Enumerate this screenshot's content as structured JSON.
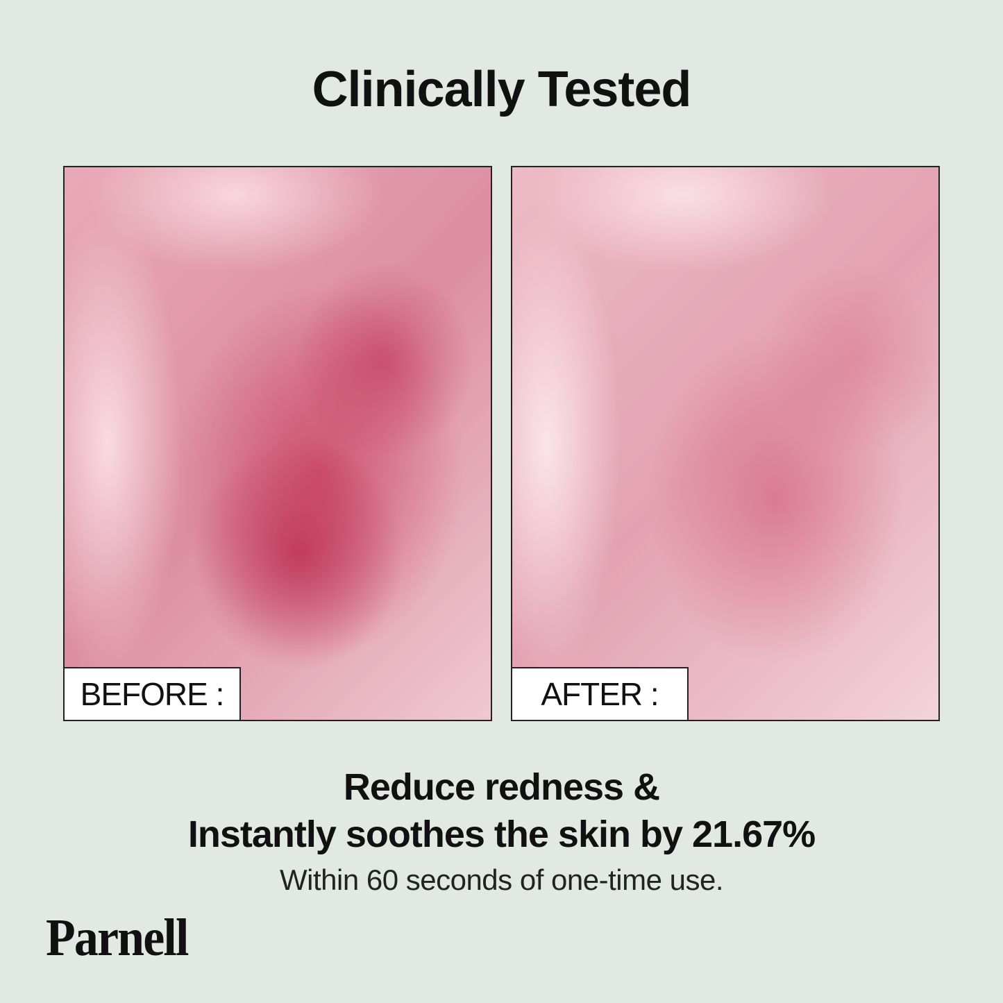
{
  "title": "Clinically Tested",
  "panels": [
    {
      "label": "BEFORE :"
    },
    {
      "label": "AFTER :"
    }
  ],
  "headline": {
    "line1": "Reduce redness &",
    "line2": "Instantly soothes the skin by 21.67%"
  },
  "subtext": "Within 60 seconds of one-time use.",
  "brand": "Parnell",
  "colors": {
    "background": "#e2e9e2",
    "text": "#111111"
  }
}
